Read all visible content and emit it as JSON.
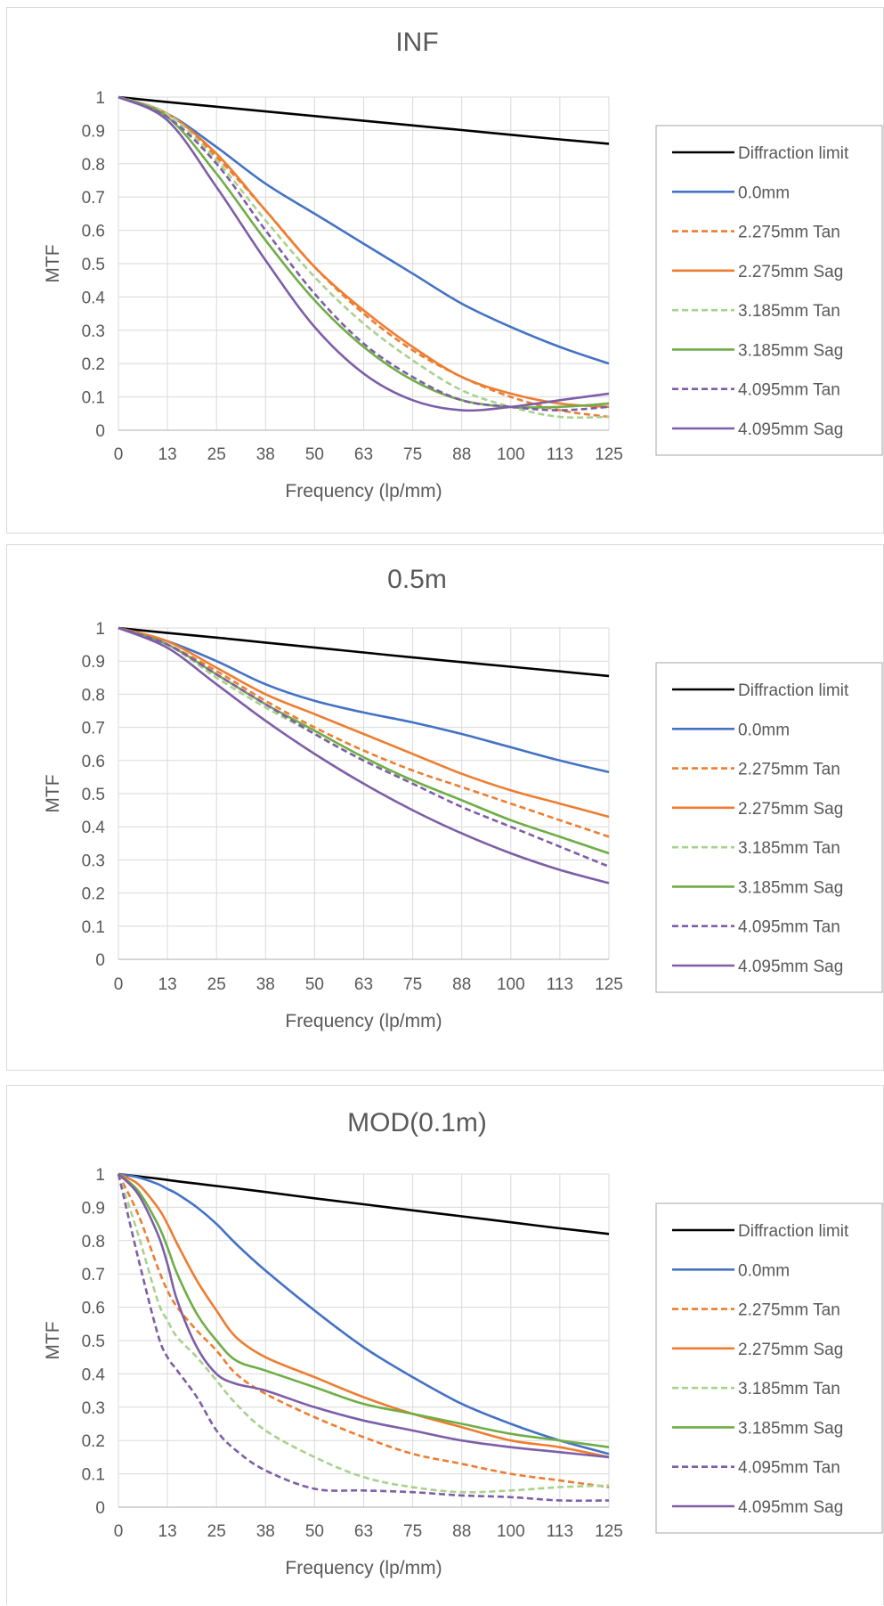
{
  "chart_data": [
    {
      "type": "line",
      "title": "INF",
      "xlabel": "Frequency (lp/mm)",
      "ylabel": "MTF",
      "xlim": [
        0,
        125
      ],
      "ylim": [
        0,
        1
      ],
      "x_ticks": [
        "0",
        "13",
        "25",
        "38",
        "50",
        "63",
        "75",
        "88",
        "100",
        "113",
        "125"
      ],
      "y_ticks": [
        "0",
        "0.1",
        "0.2",
        "0.3",
        "0.4",
        "0.5",
        "0.6",
        "0.7",
        "0.8",
        "0.9",
        "1"
      ],
      "grid": true,
      "legend_position": "right",
      "x": [
        0,
        12.5,
        25,
        37.5,
        50,
        62.5,
        75,
        87.5,
        100,
        112.5,
        125
      ],
      "series": [
        {
          "name": "Diffraction limit",
          "color": "#000000",
          "dash": false,
          "values": [
            1.0,
            0.985,
            0.971,
            0.957,
            0.943,
            0.929,
            0.915,
            0.901,
            0.887,
            0.873,
            0.86
          ]
        },
        {
          "name": "0.0mm",
          "color": "#4472c4",
          "dash": false,
          "values": [
            1.0,
            0.95,
            0.85,
            0.74,
            0.65,
            0.56,
            0.47,
            0.38,
            0.31,
            0.25,
            0.2
          ]
        },
        {
          "name": "2.275mm Tan",
          "color": "#ed7d31",
          "dash": true,
          "values": [
            1.0,
            0.95,
            0.82,
            0.66,
            0.49,
            0.35,
            0.24,
            0.16,
            0.1,
            0.06,
            0.04
          ]
        },
        {
          "name": "2.275mm Sag",
          "color": "#ed7d31",
          "dash": false,
          "values": [
            1.0,
            0.95,
            0.83,
            0.66,
            0.49,
            0.36,
            0.25,
            0.16,
            0.11,
            0.08,
            0.07
          ]
        },
        {
          "name": "3.185mm Tan",
          "color": "#a9d18e",
          "dash": true,
          "values": [
            1.0,
            0.95,
            0.81,
            0.63,
            0.46,
            0.32,
            0.21,
            0.12,
            0.07,
            0.04,
            0.04
          ]
        },
        {
          "name": "3.185mm Sag",
          "color": "#70ad47",
          "dash": false,
          "values": [
            1.0,
            0.94,
            0.77,
            0.57,
            0.39,
            0.25,
            0.15,
            0.09,
            0.07,
            0.07,
            0.08
          ]
        },
        {
          "name": "4.095mm Tan",
          "color": "#7d5ea8",
          "dash": true,
          "values": [
            1.0,
            0.94,
            0.8,
            0.6,
            0.41,
            0.26,
            0.16,
            0.09,
            0.07,
            0.06,
            0.07
          ]
        },
        {
          "name": "4.095mm Sag",
          "color": "#7d5ea8",
          "dash": false,
          "values": [
            1.0,
            0.93,
            0.73,
            0.51,
            0.31,
            0.17,
            0.09,
            0.06,
            0.07,
            0.09,
            0.11
          ]
        }
      ]
    },
    {
      "type": "line",
      "title": "0.5m",
      "xlabel": "Frequency (lp/mm)",
      "ylabel": "MTF",
      "xlim": [
        0,
        125
      ],
      "ylim": [
        0,
        1
      ],
      "x_ticks": [
        "0",
        "13",
        "25",
        "38",
        "50",
        "63",
        "75",
        "88",
        "100",
        "113",
        "125"
      ],
      "y_ticks": [
        "0",
        "0.1",
        "0.2",
        "0.3",
        "0.4",
        "0.5",
        "0.6",
        "0.7",
        "0.8",
        "0.9",
        "1"
      ],
      "grid": true,
      "legend_position": "right",
      "x": [
        0,
        12.5,
        25,
        37.5,
        50,
        62.5,
        75,
        87.5,
        100,
        112.5,
        125
      ],
      "series": [
        {
          "name": "Diffraction limit",
          "color": "#000000",
          "dash": false,
          "values": [
            1.0,
            0.985,
            0.971,
            0.956,
            0.941,
            0.926,
            0.911,
            0.897,
            0.883,
            0.869,
            0.855
          ]
        },
        {
          "name": "0.0mm",
          "color": "#4472c4",
          "dash": false,
          "values": [
            1.0,
            0.96,
            0.9,
            0.83,
            0.78,
            0.745,
            0.715,
            0.68,
            0.64,
            0.6,
            0.565
          ]
        },
        {
          "name": "2.275mm Tan",
          "color": "#ed7d31",
          "dash": true,
          "values": [
            1.0,
            0.95,
            0.87,
            0.78,
            0.7,
            0.63,
            0.57,
            0.52,
            0.47,
            0.42,
            0.37
          ]
        },
        {
          "name": "2.275mm Sag",
          "color": "#ed7d31",
          "dash": false,
          "values": [
            1.0,
            0.96,
            0.88,
            0.8,
            0.74,
            0.68,
            0.62,
            0.56,
            0.51,
            0.47,
            0.43
          ]
        },
        {
          "name": "3.185mm Tan",
          "color": "#a9d18e",
          "dash": true,
          "values": [
            1.0,
            0.95,
            0.85,
            0.76,
            0.68,
            0.6,
            0.54,
            0.48,
            0.42,
            0.37,
            0.32
          ]
        },
        {
          "name": "3.185mm Sag",
          "color": "#70ad47",
          "dash": false,
          "values": [
            1.0,
            0.95,
            0.86,
            0.77,
            0.69,
            0.61,
            0.54,
            0.48,
            0.42,
            0.37,
            0.32
          ]
        },
        {
          "name": "4.095mm Tan",
          "color": "#7d5ea8",
          "dash": true,
          "values": [
            1.0,
            0.95,
            0.86,
            0.77,
            0.68,
            0.6,
            0.53,
            0.46,
            0.4,
            0.34,
            0.28
          ]
        },
        {
          "name": "4.095mm Sag",
          "color": "#7d5ea8",
          "dash": false,
          "values": [
            1.0,
            0.94,
            0.83,
            0.72,
            0.62,
            0.53,
            0.45,
            0.38,
            0.32,
            0.27,
            0.23
          ]
        }
      ]
    },
    {
      "type": "line",
      "title": "MOD(0.1m)",
      "xlabel": "Frequency (lp/mm)",
      "ylabel": "MTF",
      "xlim": [
        0,
        125
      ],
      "ylim": [
        0,
        1
      ],
      "x_ticks": [
        "0",
        "13",
        "25",
        "38",
        "50",
        "63",
        "75",
        "88",
        "100",
        "113",
        "125"
      ],
      "y_ticks": [
        "0",
        "0.1",
        "0.2",
        "0.3",
        "0.4",
        "0.5",
        "0.6",
        "0.7",
        "0.8",
        "0.9",
        "1"
      ],
      "grid": true,
      "legend_position": "right",
      "x": [
        0,
        5,
        10,
        12.5,
        15,
        20,
        25,
        30,
        37.5,
        50,
        62.5,
        75,
        87.5,
        100,
        112.5,
        125
      ],
      "series": [
        {
          "name": "Diffraction limit",
          "color": "#000000",
          "dash": false,
          "values": [
            1.0,
            0.993,
            0.986,
            0.982,
            0.978,
            0.971,
            0.964,
            0.957,
            0.946,
            0.927,
            0.909,
            0.891,
            0.873,
            0.855,
            0.837,
            0.82
          ]
        },
        {
          "name": "0.0mm",
          "color": "#4472c4",
          "dash": false,
          "values": [
            1.0,
            0.99,
            0.97,
            0.955,
            0.94,
            0.9,
            0.85,
            0.79,
            0.71,
            0.59,
            0.48,
            0.39,
            0.31,
            0.25,
            0.2,
            0.16
          ]
        },
        {
          "name": "2.275mm Tan",
          "color": "#ed7d31",
          "dash": true,
          "values": [
            1.0,
            0.88,
            0.72,
            0.65,
            0.6,
            0.53,
            0.47,
            0.4,
            0.34,
            0.27,
            0.21,
            0.16,
            0.13,
            0.1,
            0.08,
            0.06
          ]
        },
        {
          "name": "2.275mm Sag",
          "color": "#ed7d31",
          "dash": false,
          "values": [
            1.0,
            0.97,
            0.9,
            0.85,
            0.79,
            0.68,
            0.59,
            0.51,
            0.45,
            0.39,
            0.33,
            0.28,
            0.24,
            0.2,
            0.18,
            0.15
          ]
        },
        {
          "name": "3.185mm Tan",
          "color": "#a9d18e",
          "dash": true,
          "values": [
            1.0,
            0.82,
            0.62,
            0.56,
            0.51,
            0.45,
            0.38,
            0.31,
            0.23,
            0.15,
            0.09,
            0.06,
            0.045,
            0.05,
            0.06,
            0.065
          ]
        },
        {
          "name": "3.185mm Sag",
          "color": "#70ad47",
          "dash": false,
          "values": [
            1.0,
            0.95,
            0.85,
            0.78,
            0.7,
            0.58,
            0.5,
            0.44,
            0.41,
            0.36,
            0.31,
            0.28,
            0.25,
            0.22,
            0.2,
            0.18
          ]
        },
        {
          "name": "4.095mm Tan",
          "color": "#7d5ea8",
          "dash": true,
          "values": [
            1.0,
            0.75,
            0.52,
            0.45,
            0.41,
            0.33,
            0.23,
            0.17,
            0.11,
            0.055,
            0.05,
            0.045,
            0.035,
            0.03,
            0.02,
            0.02
          ]
        },
        {
          "name": "4.095mm Sag",
          "color": "#7d5ea8",
          "dash": false,
          "values": [
            1.0,
            0.94,
            0.82,
            0.73,
            0.62,
            0.48,
            0.4,
            0.37,
            0.35,
            0.3,
            0.26,
            0.23,
            0.2,
            0.18,
            0.165,
            0.15
          ]
        }
      ]
    }
  ]
}
